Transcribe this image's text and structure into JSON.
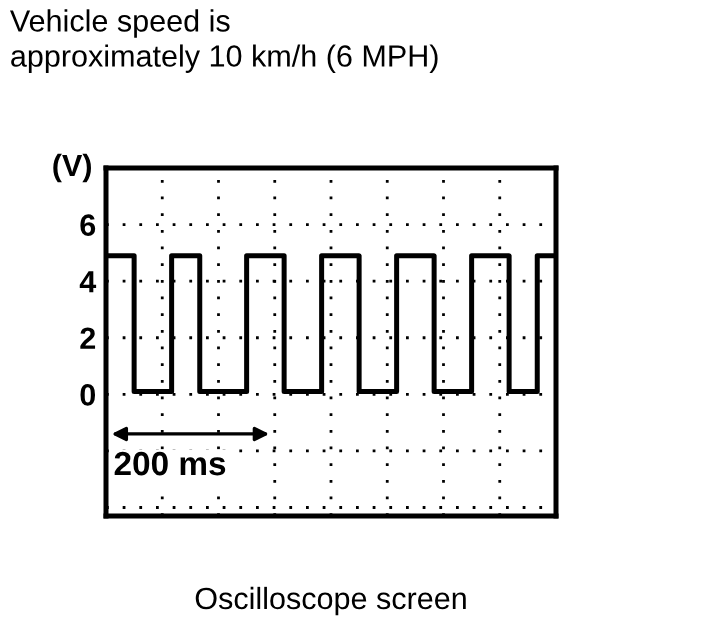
{
  "chart_data": {
    "type": "step",
    "title": "Vehicle speed is\napproximately 10 km/h (6 MPH)",
    "ylabel": "(V)",
    "xlabel": "Oscilloscope screen",
    "annotations": [
      "200 ms"
    ],
    "categories": [
      null,
      null,
      null,
      null,
      null,
      null,
      null,
      null,
      null,
      null,
      null,
      null,
      null,
      null,
      null,
      null,
      null,
      null,
      null,
      null,
      null,
      null,
      null,
      null,
      null,
      null,
      null,
      null,
      null,
      null,
      null,
      null,
      null,
      null,
      null,
      null,
      null,
      null,
      null,
      null,
      null,
      null,
      null,
      null,
      null,
      null,
      null,
      null,
      null
    ],
    "series": [
      {
        "color": "#000000",
        "values": [
          4.9,
          4.9,
          4.9,
          0.1,
          0.1,
          0.1,
          0.1,
          4.9,
          4.9,
          4.9,
          0.1,
          0.1,
          0.1,
          0.1,
          0.1,
          4.9,
          4.9,
          4.9,
          4.9,
          0.1,
          0.1,
          0.1,
          0.1,
          4.9,
          4.9,
          4.9,
          4.9,
          0.1,
          0.1,
          0.1,
          0.1,
          4.9,
          4.9,
          4.9,
          4.9,
          0.1,
          0.1,
          0.1,
          0.1,
          4.9,
          4.9,
          4.9,
          4.9,
          0.1,
          0.1,
          0.1,
          4.9,
          4.9,
          4.9
        ]
      }
    ],
    "ylim": [
      -4.3,
      8
    ],
    "yticks": [
      {
        "value": -4,
        "label": null
      },
      {
        "value": -2,
        "label": null
      },
      0,
      2,
      4,
      6
    ],
    "tick_labels": "y",
    "grid": true,
    "line_style": "solid",
    "marker": "none"
  }
}
